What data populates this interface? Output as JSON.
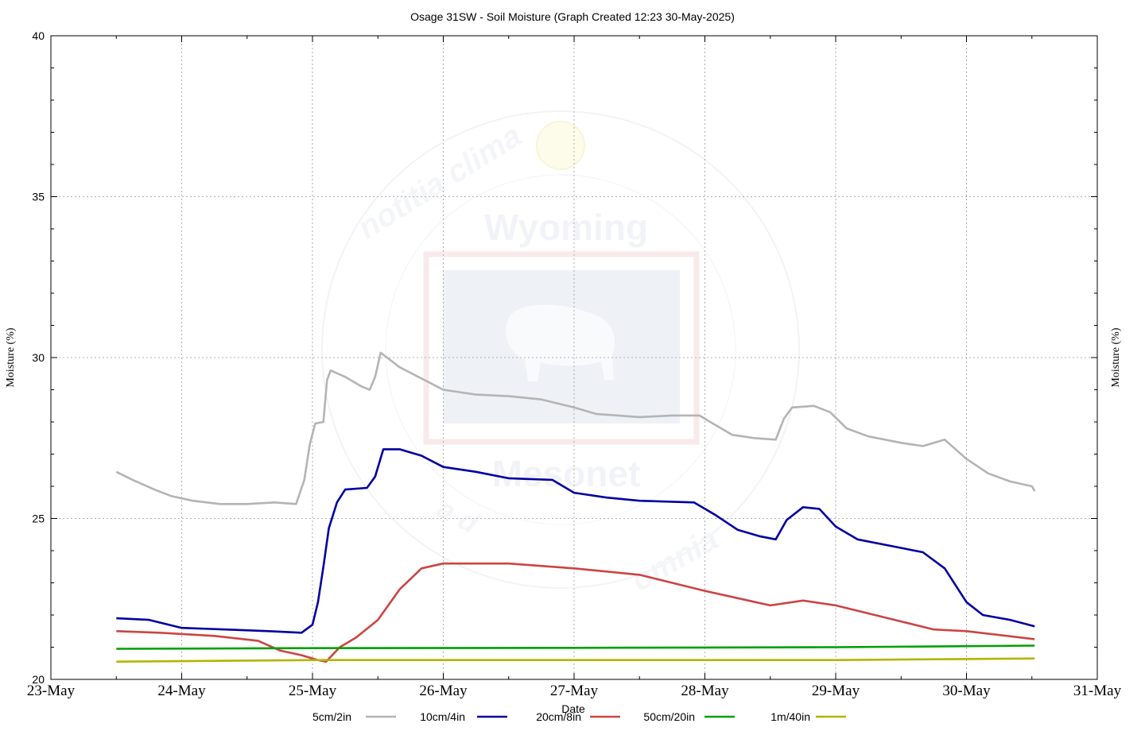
{
  "chart_data": {
    "type": "line",
    "title": "Osage 31SW - Soil Moisture (Graph Created 12:23 30-May-2025)",
    "xlabel": "Date",
    "ylabel": "Moisture (%)",
    "y2label": "Moisture (%)",
    "xlim": [
      "2025-05-23",
      "2025-05-31"
    ],
    "ylim": [
      20,
      40
    ],
    "x_ticks": [
      "23-May",
      "24-May",
      "25-May",
      "26-May",
      "27-May",
      "28-May",
      "29-May",
      "30-May",
      "31-May"
    ],
    "y_ticks": [
      "20",
      "25",
      "30",
      "35",
      "40"
    ],
    "grid": true,
    "legend_position": "bottom",
    "series": [
      {
        "name": "5cm/2in",
        "color": "#b4b4b4",
        "points": [
          [
            "2025-05-23 12:00",
            26.45
          ],
          [
            "2025-05-23 15:00",
            26.2
          ],
          [
            "2025-05-23 19:00",
            25.9
          ],
          [
            "2025-05-23 22:00",
            25.7
          ],
          [
            "2025-05-24 02:00",
            25.55
          ],
          [
            "2025-05-24 07:00",
            25.45
          ],
          [
            "2025-05-24 12:00",
            25.45
          ],
          [
            "2025-05-24 17:00",
            25.5
          ],
          [
            "2025-05-24 21:00",
            25.45
          ],
          [
            "2025-05-24 22:30",
            26.2
          ],
          [
            "2025-05-24 23:30",
            27.3
          ],
          [
            "2025-05-25 00:30",
            27.95
          ],
          [
            "2025-05-25 02:00",
            28.0
          ],
          [
            "2025-05-25 02:40",
            29.3
          ],
          [
            "2025-05-25 03:20",
            29.6
          ],
          [
            "2025-05-25 06:00",
            29.4
          ],
          [
            "2025-05-25 09:00",
            29.1
          ],
          [
            "2025-05-25 10:30",
            29.0
          ],
          [
            "2025-05-25 11:30",
            29.4
          ],
          [
            "2025-05-25 12:30",
            30.15
          ],
          [
            "2025-05-25 16:00",
            29.7
          ],
          [
            "2025-05-25 20:00",
            29.35
          ],
          [
            "2025-05-26 00:00",
            29.0
          ],
          [
            "2025-05-26 06:00",
            28.85
          ],
          [
            "2025-05-26 12:00",
            28.8
          ],
          [
            "2025-05-26 18:00",
            28.7
          ],
          [
            "2025-05-27 00:00",
            28.45
          ],
          [
            "2025-05-27 04:00",
            28.25
          ],
          [
            "2025-05-27 08:00",
            28.2
          ],
          [
            "2025-05-27 12:00",
            28.15
          ],
          [
            "2025-05-27 18:00",
            28.2
          ],
          [
            "2025-05-27 23:00",
            28.2
          ],
          [
            "2025-05-28 02:00",
            27.9
          ],
          [
            "2025-05-28 05:00",
            27.6
          ],
          [
            "2025-05-28 09:00",
            27.5
          ],
          [
            "2025-05-28 13:00",
            27.45
          ],
          [
            "2025-05-28 14:30",
            28.1
          ],
          [
            "2025-05-28 16:00",
            28.45
          ],
          [
            "2025-05-28 20:00",
            28.5
          ],
          [
            "2025-05-28 23:00",
            28.3
          ],
          [
            "2025-05-29 02:00",
            27.8
          ],
          [
            "2025-05-29 06:00",
            27.55
          ],
          [
            "2025-05-29 12:00",
            27.35
          ],
          [
            "2025-05-29 16:00",
            27.25
          ],
          [
            "2025-05-29 20:00",
            27.45
          ],
          [
            "2025-05-30 00:00",
            26.85
          ],
          [
            "2025-05-30 04:00",
            26.4
          ],
          [
            "2025-05-30 08:00",
            26.15
          ],
          [
            "2025-05-30 12:00",
            26.0
          ],
          [
            "2025-05-30 12:30",
            25.85
          ]
        ]
      },
      {
        "name": "10cm/4in",
        "color": "#0000a0",
        "points": [
          [
            "2025-05-23 12:00",
            21.9
          ],
          [
            "2025-05-23 18:00",
            21.85
          ],
          [
            "2025-05-24 00:00",
            21.6
          ],
          [
            "2025-05-24 08:00",
            21.55
          ],
          [
            "2025-05-24 16:00",
            21.5
          ],
          [
            "2025-05-24 22:00",
            21.45
          ],
          [
            "2025-05-25 00:00",
            21.7
          ],
          [
            "2025-05-25 01:00",
            22.4
          ],
          [
            "2025-05-25 02:00",
            23.5
          ],
          [
            "2025-05-25 03:00",
            24.7
          ],
          [
            "2025-05-25 04:30",
            25.5
          ],
          [
            "2025-05-25 06:00",
            25.9
          ],
          [
            "2025-05-25 10:00",
            25.95
          ],
          [
            "2025-05-25 11:30",
            26.3
          ],
          [
            "2025-05-25 13:00",
            27.15
          ],
          [
            "2025-05-25 16:00",
            27.15
          ],
          [
            "2025-05-25 20:00",
            26.95
          ],
          [
            "2025-05-26 00:00",
            26.6
          ],
          [
            "2025-05-26 06:00",
            26.45
          ],
          [
            "2025-05-26 12:00",
            26.25
          ],
          [
            "2025-05-26 20:00",
            26.2
          ],
          [
            "2025-05-27 00:00",
            25.8
          ],
          [
            "2025-05-27 06:00",
            25.65
          ],
          [
            "2025-05-27 12:00",
            25.55
          ],
          [
            "2025-05-27 22:00",
            25.5
          ],
          [
            "2025-05-28 02:00",
            25.1
          ],
          [
            "2025-05-28 06:00",
            24.65
          ],
          [
            "2025-05-28 10:00",
            24.45
          ],
          [
            "2025-05-28 13:00",
            24.35
          ],
          [
            "2025-05-28 15:00",
            24.95
          ],
          [
            "2025-05-28 18:00",
            25.35
          ],
          [
            "2025-05-28 21:00",
            25.3
          ],
          [
            "2025-05-29 00:00",
            24.75
          ],
          [
            "2025-05-29 04:00",
            24.35
          ],
          [
            "2025-05-29 10:00",
            24.15
          ],
          [
            "2025-05-29 16:00",
            23.95
          ],
          [
            "2025-05-29 20:00",
            23.45
          ],
          [
            "2025-05-30 00:00",
            22.4
          ],
          [
            "2025-05-30 03:00",
            22.0
          ],
          [
            "2025-05-30 08:00",
            21.85
          ],
          [
            "2025-05-30 12:30",
            21.65
          ]
        ]
      },
      {
        "name": "20cm/8in",
        "color": "#cc4444",
        "points": [
          [
            "2025-05-23 12:00",
            21.5
          ],
          [
            "2025-05-23 20:00",
            21.45
          ],
          [
            "2025-05-24 06:00",
            21.35
          ],
          [
            "2025-05-24 14:00",
            21.2
          ],
          [
            "2025-05-24 18:00",
            20.9
          ],
          [
            "2025-05-24 22:00",
            20.75
          ],
          [
            "2025-05-25 01:00",
            20.6
          ],
          [
            "2025-05-25 02:30",
            20.55
          ],
          [
            "2025-05-25 05:00",
            21.0
          ],
          [
            "2025-05-25 08:00",
            21.3
          ],
          [
            "2025-05-25 12:00",
            21.85
          ],
          [
            "2025-05-25 16:00",
            22.8
          ],
          [
            "2025-05-25 20:00",
            23.45
          ],
          [
            "2025-05-26 00:00",
            23.6
          ],
          [
            "2025-05-26 12:00",
            23.6
          ],
          [
            "2025-05-27 00:00",
            23.45
          ],
          [
            "2025-05-27 12:00",
            23.25
          ],
          [
            "2025-05-28 00:00",
            22.75
          ],
          [
            "2025-05-28 08:00",
            22.45
          ],
          [
            "2025-05-28 12:00",
            22.3
          ],
          [
            "2025-05-28 18:00",
            22.45
          ],
          [
            "2025-05-29 00:00",
            22.3
          ],
          [
            "2025-05-29 06:00",
            22.05
          ],
          [
            "2025-05-29 12:00",
            21.8
          ],
          [
            "2025-05-29 18:00",
            21.55
          ],
          [
            "2025-05-30 00:00",
            21.5
          ],
          [
            "2025-05-30 12:30",
            21.25
          ]
        ]
      },
      {
        "name": "50cm/20in",
        "color": "#00a000",
        "points": [
          [
            "2025-05-23 12:00",
            20.95
          ],
          [
            "2025-05-25 00:00",
            20.97
          ],
          [
            "2025-05-27 00:00",
            20.98
          ],
          [
            "2025-05-29 00:00",
            21.0
          ],
          [
            "2025-05-30 12:30",
            21.05
          ]
        ]
      },
      {
        "name": "1m/40in",
        "color": "#b4b400",
        "points": [
          [
            "2025-05-23 12:00",
            20.55
          ],
          [
            "2025-05-25 00:00",
            20.6
          ],
          [
            "2025-05-27 00:00",
            20.6
          ],
          [
            "2025-05-29 00:00",
            20.6
          ],
          [
            "2025-05-30 12:30",
            20.65
          ]
        ]
      }
    ]
  },
  "watermark": {
    "ring_top": "notitia   clima",
    "ring_bottom": "omnia",
    "ring_bottom_left": "a   d",
    "state": "Wyoming",
    "program": "Mesonet"
  }
}
